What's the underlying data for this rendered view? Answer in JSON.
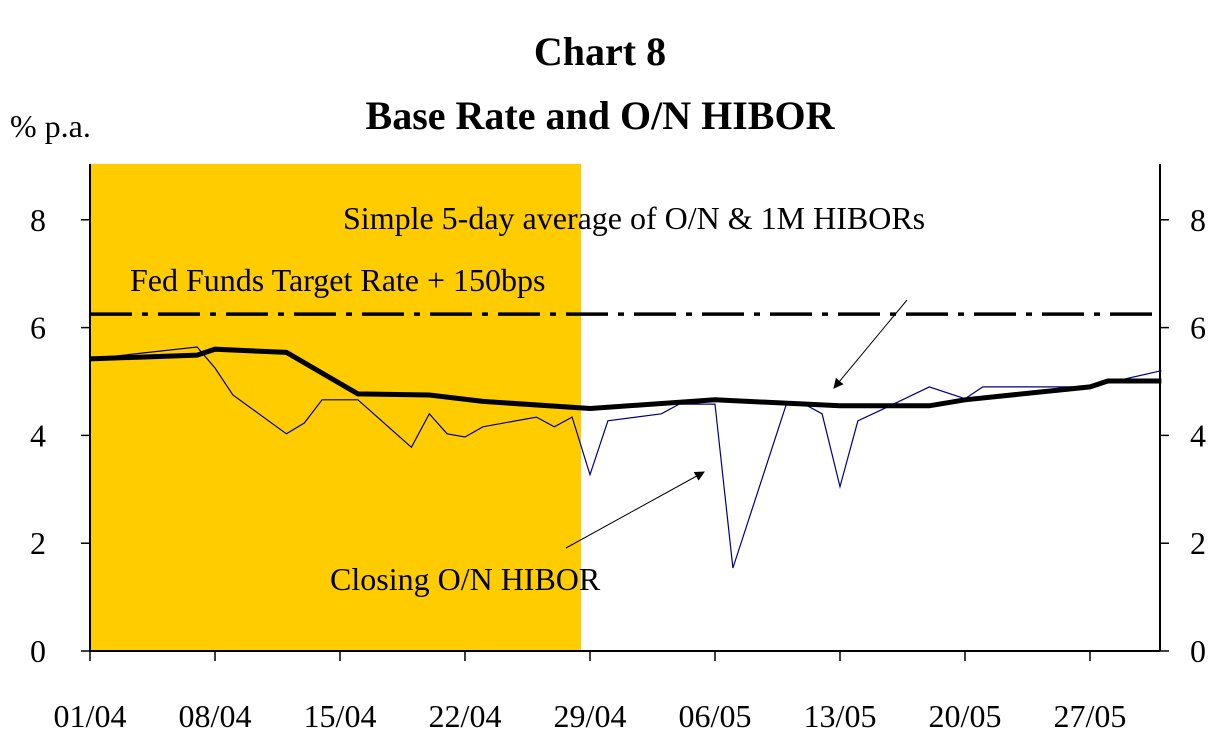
{
  "chart_data": {
    "type": "line",
    "title": "Chart 8",
    "subtitle": "Base Rate and O/N HIBOR",
    "ylabel": "% p.a.",
    "xlabel": "",
    "ylim": [
      0,
      9
    ],
    "yticks": [
      0,
      2,
      4,
      6,
      8
    ],
    "right_axis_mirrors_left": true,
    "x_range": [
      "01/04",
      "31/05"
    ],
    "xticks": [
      "01/04",
      "08/04",
      "15/04",
      "22/04",
      "29/04",
      "06/05",
      "13/05",
      "20/05",
      "27/05"
    ],
    "grid": false,
    "legend": "none",
    "shaded_period": {
      "from": "01/04",
      "to": "29/04",
      "color": "#FFCC00"
    },
    "series": [
      {
        "name": "Closing O/N HIBOR",
        "color": "#000080",
        "style": "thin",
        "points": [
          [
            "01/04",
            5.42
          ],
          [
            "07/04",
            5.64
          ],
          [
            "08/04",
            5.25
          ],
          [
            "09/04",
            4.75
          ],
          [
            "12/04",
            4.03
          ],
          [
            "13/04",
            4.23
          ],
          [
            "14/04",
            4.66
          ],
          [
            "16/04",
            4.66
          ],
          [
            "19/04",
            3.78
          ],
          [
            "20/04",
            4.4
          ],
          [
            "21/04",
            4.03
          ],
          [
            "22/04",
            3.97
          ],
          [
            "23/04",
            4.16
          ],
          [
            "26/04",
            4.34
          ],
          [
            "27/04",
            4.16
          ],
          [
            "28/04",
            4.34
          ],
          [
            "29/04",
            3.27
          ],
          [
            "30/04",
            4.27
          ],
          [
            "03/05",
            4.4
          ],
          [
            "04/05",
            4.58
          ],
          [
            "06/05",
            4.58
          ],
          [
            "07/05",
            1.54
          ],
          [
            "10/05",
            4.58
          ],
          [
            "11/05",
            4.58
          ],
          [
            "12/05",
            4.4
          ],
          [
            "13/05",
            3.05
          ],
          [
            "14/05",
            4.27
          ],
          [
            "16/05",
            4.58
          ],
          [
            "18/05",
            4.9
          ],
          [
            "20/05",
            4.68
          ],
          [
            "21/05",
            4.9
          ],
          [
            "27/05",
            4.9
          ],
          [
            "31/05",
            5.2
          ]
        ]
      },
      {
        "name": "Simple 5-day average of O/N & 1M HIBORs",
        "color": "#000000",
        "style": "thick",
        "points": [
          [
            "01/04",
            5.42
          ],
          [
            "07/04",
            5.49
          ],
          [
            "08/04",
            5.6
          ],
          [
            "12/04",
            5.54
          ],
          [
            "16/04",
            4.77
          ],
          [
            "20/04",
            4.75
          ],
          [
            "23/04",
            4.63
          ],
          [
            "29/04",
            4.5
          ],
          [
            "06/05",
            4.66
          ],
          [
            "13/05",
            4.55
          ],
          [
            "18/05",
            4.55
          ],
          [
            "20/05",
            4.66
          ],
          [
            "27/05",
            4.9
          ],
          [
            "28/05",
            5.01
          ],
          [
            "31/05",
            5.01
          ]
        ]
      },
      {
        "name": "Fed Funds Target Rate + 150bps",
        "color": "#000000",
        "style": "dash-dot",
        "points": [
          [
            "01/04",
            6.25
          ],
          [
            "31/05",
            6.25
          ]
        ]
      }
    ]
  }
}
